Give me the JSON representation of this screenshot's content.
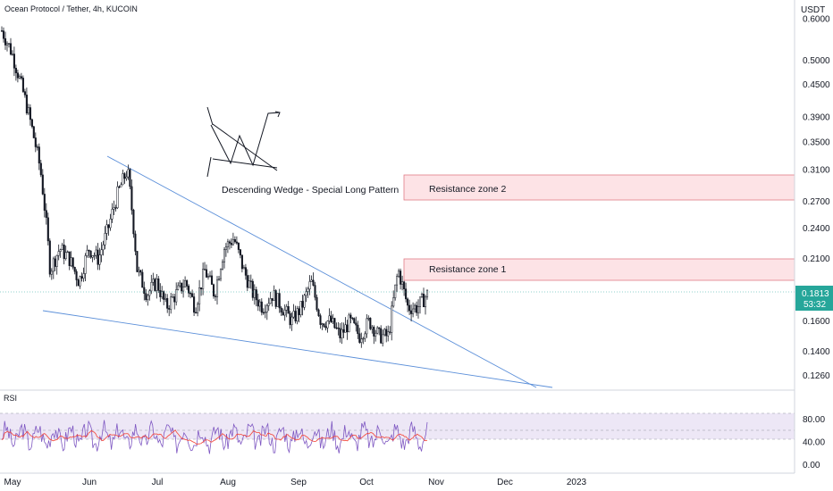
{
  "header": {
    "symbol_title": "Ocean Protocol / Tether, 4h, KUCOIN",
    "currency": "USDT"
  },
  "colors": {
    "candle": "#131722",
    "trendline": "#5b8fd9",
    "zone_fill": "#fde3e6",
    "zone_border": "#e07b86",
    "price_label_bg": "#26a69a",
    "rsi_line": "#7e57c2",
    "rsi_ma": "#f44336",
    "rsi_band": "#ede7f6"
  },
  "chart_data": [
    {
      "type": "line",
      "title": "Ocean Protocol / Tether, 4h, KUCOIN",
      "xlabel": "",
      "ylabel": "USDT",
      "scale": "log",
      "x_ticks": [
        "May",
        "Jun",
        "Jul",
        "Aug",
        "Sep",
        "Oct",
        "Nov",
        "Dec",
        "2023"
      ],
      "y_ticks": [
        "0.6000",
        "0.5000",
        "0.4500",
        "0.3900",
        "0.3500",
        "0.3100",
        "0.2700",
        "0.2400",
        "0.2100",
        "0.1600",
        "0.1400",
        "0.1260"
      ],
      "last_price": "0.1813",
      "countdown": "53:32",
      "series": [
        {
          "values_approx": [
            0.57,
            0.52,
            0.45,
            0.38,
            0.31,
            0.2,
            0.22,
            0.21,
            0.19,
            0.22,
            0.21,
            0.24,
            0.28,
            0.31,
            0.2,
            0.18,
            0.19,
            0.17,
            0.18,
            0.19,
            0.17,
            0.2,
            0.18,
            0.22,
            0.23,
            0.2,
            0.18,
            0.17,
            0.18,
            0.17,
            0.16,
            0.17,
            0.19,
            0.16,
            0.16,
            0.15,
            0.16,
            0.15,
            0.16,
            0.15,
            0.15,
            0.2,
            0.17,
            0.17,
            0.18
          ]
        }
      ],
      "annotations": {
        "pattern_label": "Descending Wedge - Special Long Pattern",
        "zones": [
          {
            "label": "Resistance zone 2",
            "from": 0.27,
            "to": 0.305
          },
          {
            "label": "Resistance zone 1",
            "from": 0.19,
            "to": 0.21
          }
        ]
      }
    },
    {
      "type": "line",
      "title": "RSI",
      "y_ticks": [
        "80.00",
        "40.00",
        "0.00"
      ],
      "band": [
        30,
        70
      ],
      "midline": 50
    }
  ]
}
